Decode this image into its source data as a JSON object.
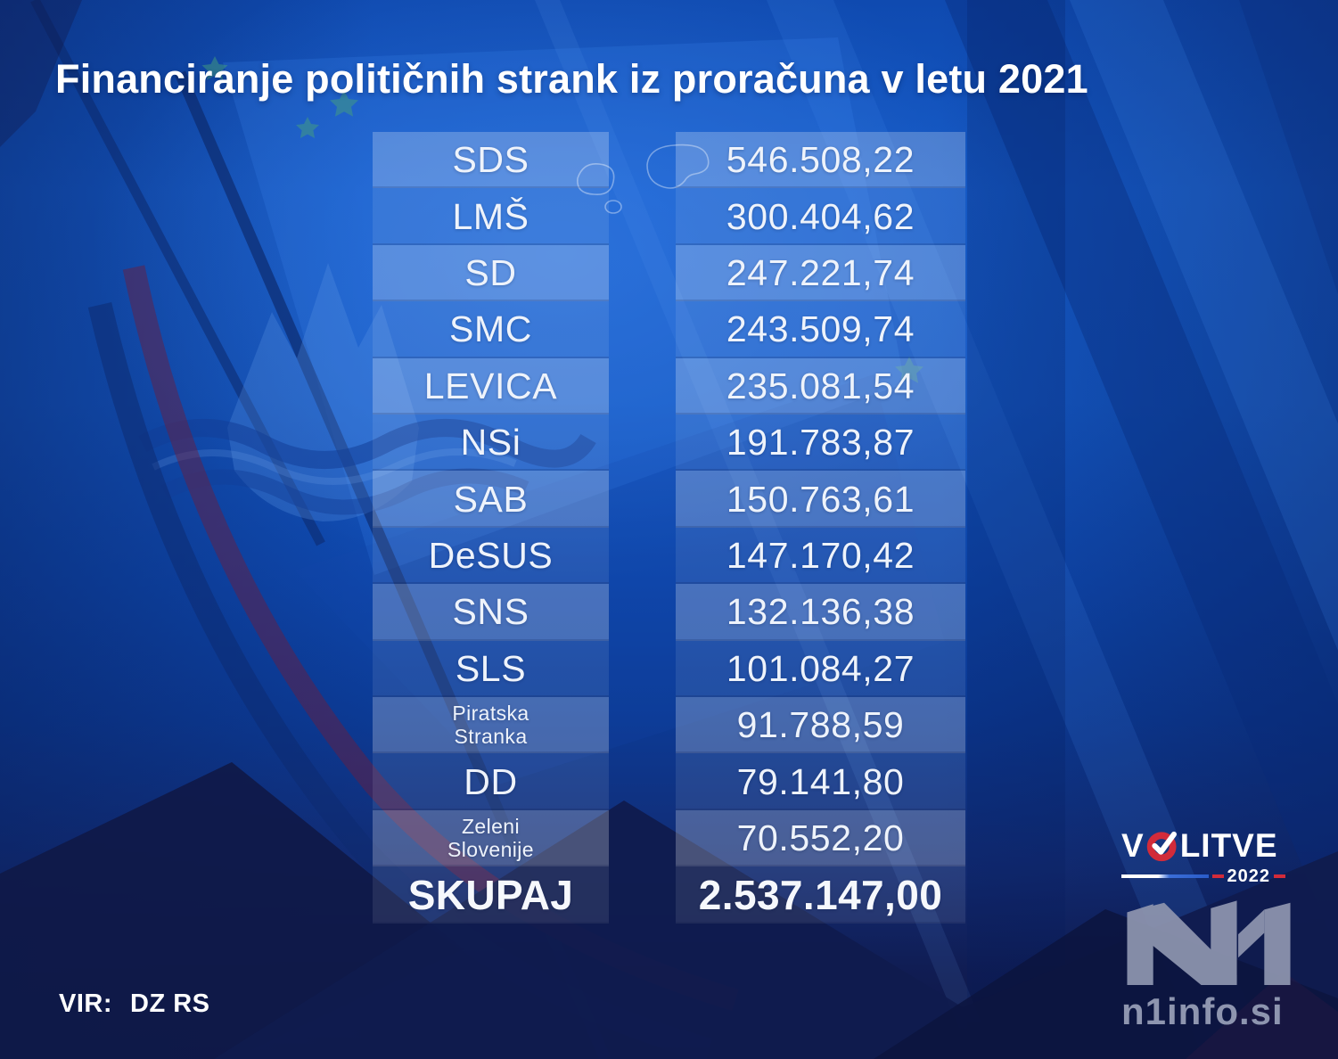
{
  "title": "Financiranje političnih strank iz proračuna v letu 2021",
  "table": {
    "rows": [
      {
        "party": "SDS",
        "amount": "546.508,22"
      },
      {
        "party": "LMŠ",
        "amount": "300.404,62"
      },
      {
        "party": "SD",
        "amount": "247.221,74"
      },
      {
        "party": "SMC",
        "amount": "243.509,74"
      },
      {
        "party": "LEVICA",
        "amount": "235.081,54"
      },
      {
        "party": "NSi",
        "amount": "191.783,87"
      },
      {
        "party": "SAB",
        "amount": "150.763,61"
      },
      {
        "party": "DeSUS",
        "amount": "147.170,42"
      },
      {
        "party": "SNS",
        "amount": "132.136,38"
      },
      {
        "party": "SLS",
        "amount": "101.084,27"
      },
      {
        "party_lines": [
          "Piratska",
          "Stranka"
        ],
        "amount": "91.788,59"
      },
      {
        "party": "DD",
        "amount": "79.141,80"
      },
      {
        "party_lines": [
          "Zeleni",
          "Slovenije"
        ],
        "amount": "70.552,20"
      },
      {
        "party": "SKUPAJ",
        "amount": "2.537.147,00",
        "total": true
      }
    ]
  },
  "source": {
    "label": "VIR:",
    "value": "DZ RS"
  },
  "brand": {
    "volitve_prefix": "V",
    "volitve_suffix": "LITVE",
    "year": "2022",
    "n1": "N1",
    "site": "n1info.si",
    "colors": {
      "red": "#d22b3a",
      "line_blue": "#3b6ed8",
      "logo_gray": "#8e95af"
    }
  },
  "chart_data": {
    "type": "table",
    "title": "Financiranje političnih strank iz proračuna v letu 2021",
    "source": "VIR: DZ RS",
    "columns": [
      "stranka",
      "znesek_eur"
    ],
    "categories": [
      "SDS",
      "LMŠ",
      "SD",
      "SMC",
      "LEVICA",
      "NSi",
      "SAB",
      "DeSUS",
      "SNS",
      "SLS",
      "Piratska Stranka",
      "DD",
      "Zeleni Slovenije"
    ],
    "values": [
      546508.22,
      300404.62,
      247221.74,
      243509.74,
      235081.54,
      191783.87,
      150763.61,
      147170.42,
      132136.38,
      101084.27,
      91788.59,
      79141.8,
      70552.2
    ],
    "total_label": "SKUPAJ",
    "total": 2537147.0,
    "number_format": "sl-SI"
  }
}
